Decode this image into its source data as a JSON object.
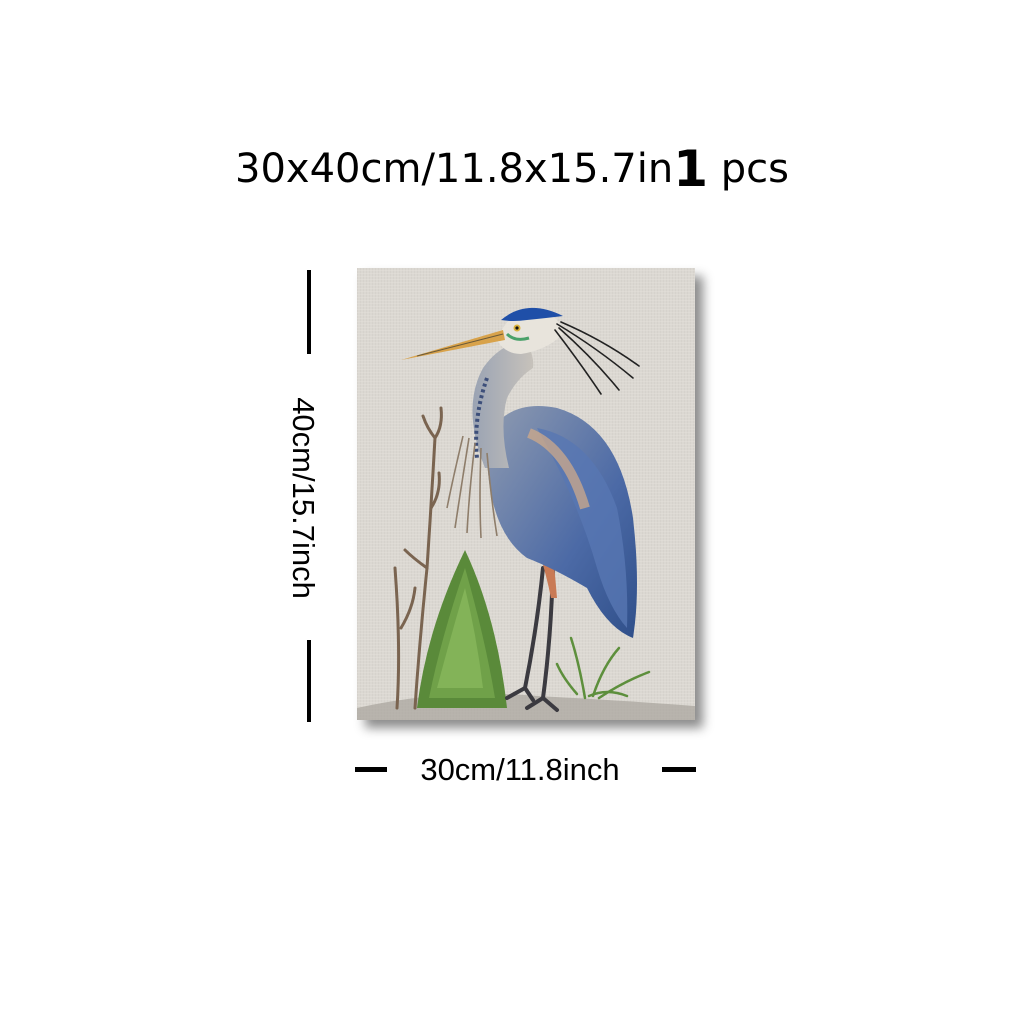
{
  "headline": {
    "size_text": "30x40cm/11.8x15.7in",
    "quantity": "1",
    "unit": "pcs"
  },
  "dimensions": {
    "width_label": "30cm/11.8inch",
    "height_label": "40cm/15.7inch"
  },
  "artwork": {
    "subject": "blue heron painting on linen-textured canvas",
    "colors": {
      "background": "#d9d6d0",
      "heron_blue": "#3f5f9c",
      "heron_gray": "#8e98a8",
      "beak": "#d8a24a",
      "grass": "#5a8a3a",
      "branch": "#7a6450"
    }
  }
}
